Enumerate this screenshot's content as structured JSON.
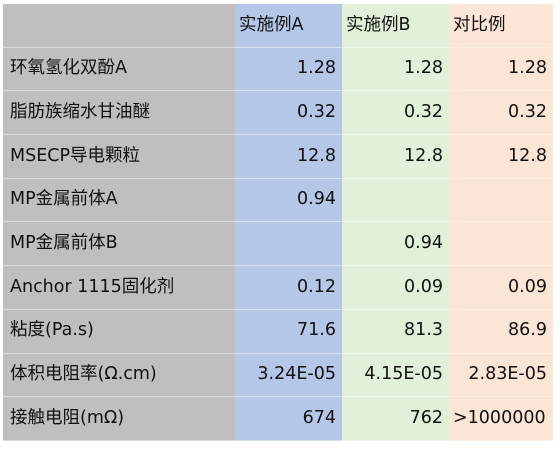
{
  "table": {
    "headers": [
      "",
      "实施例A",
      "实施例B",
      "对比例"
    ],
    "rows": [
      {
        "label": "环氧氢化双酚A",
        "a": "1.28",
        "b": "1.28",
        "c": "1.28"
      },
      {
        "label": "脂肪族缩水甘油醚",
        "a": "0.32",
        "b": "0.32",
        "c": "0.32"
      },
      {
        "label": "MSECP导电颗粒",
        "a": "12.8",
        "b": "12.8",
        "c": "12.8"
      },
      {
        "label": "MP金属前体A",
        "a": "0.94",
        "b": "",
        "c": ""
      },
      {
        "label": "MP金属前体B",
        "a": "",
        "b": "0.94",
        "c": ""
      },
      {
        "label": "Anchor 1115固化剂",
        "a": "0.12",
        "b": "0.09",
        "c": "0.09"
      },
      {
        "label": "粘度(Pa.s)",
        "a": "71.6",
        "b": "81.3",
        "c": "86.9"
      },
      {
        "label": "体积电阻率(Ω.cm)",
        "a": "3.24E-05",
        "b": "4.15E-05",
        "c": "2.83E-05"
      },
      {
        "label": "接触电阻(mΩ)",
        "a": "674",
        "b": "762",
        "c": ">1000000"
      }
    ]
  },
  "colors": {
    "label_column": "#bfbfbf",
    "column_a": "#b4c7e7",
    "column_b": "#e2f0d9",
    "column_c": "#fbe5d6"
  }
}
